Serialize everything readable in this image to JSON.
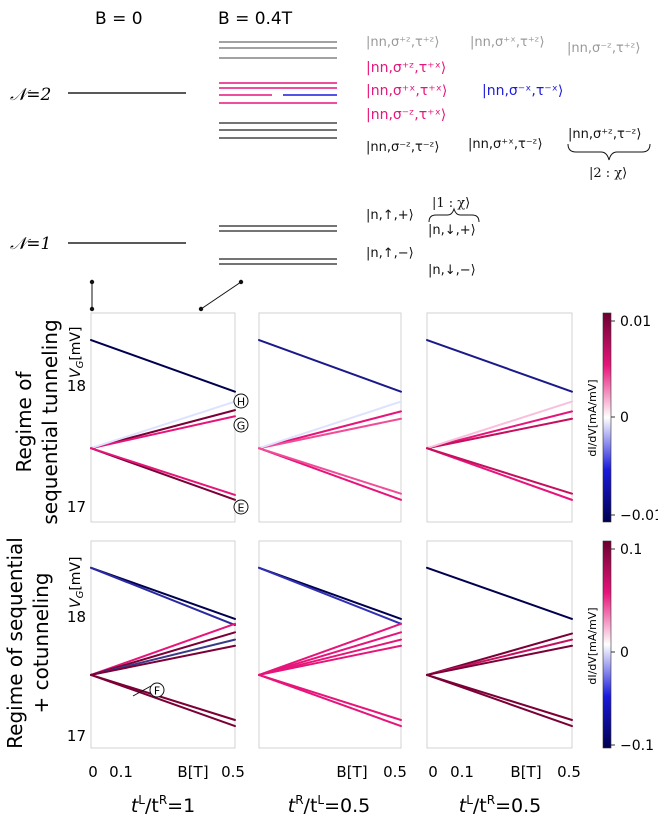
{
  "energy_diagram": {
    "b0_title": "B = 0",
    "b04_title": "B = 0.4T",
    "n2_label": "𝒩=2",
    "n1_label": "𝒩=1",
    "n2_states": [
      {
        "text": "|nn,σ⁺ᶻ,τ⁺ᶻ⟩",
        "color": "#999999"
      },
      {
        "text": "|nn,σ⁺ˣ,τ⁺ᶻ⟩",
        "color": "#999999"
      },
      {
        "text": "|nn,σ⁻ᶻ,τ⁺ᶻ⟩",
        "color": "#999999"
      },
      {
        "text": "|nn,σ⁺ᶻ,τ⁺ˣ⟩",
        "color": "#e6157a"
      },
      {
        "text": "|nn,σ⁺ˣ,τ⁺ˣ⟩",
        "color": "#e6157a"
      },
      {
        "text": "|nn,σ⁻ˣ,τ⁻ˣ⟩",
        "color": "#1a1adc"
      },
      {
        "text": "|nn,σ⁻ᶻ,τ⁺ˣ⟩",
        "color": "#e6157a"
      },
      {
        "text": "|nn,σ⁻ᶻ,τ⁻ᶻ⟩",
        "color": "#111111"
      },
      {
        "text": "|nn,σ⁺ˣ,τ⁻ᶻ⟩",
        "color": "#111111"
      },
      {
        "text": "|nn,σ⁺ᶻ,τ⁻ᶻ⟩",
        "color": "#111111"
      }
    ],
    "n2_brace_label": "|2 : χ⟩",
    "n1_states": [
      {
        "text": "|n,↑,+⟩"
      },
      {
        "text": "|n,↓,+⟩"
      },
      {
        "text": "|n,↑,−⟩"
      },
      {
        "text": "|n,↓,−⟩"
      }
    ],
    "n1_brace_label": "|1 : χ⟩"
  },
  "row_labels": {
    "top_line1": "Regime of",
    "top_line2": "sequential tunneling",
    "bottom_line1": "Regime of sequential",
    "bottom_line2": "+ cotunneling"
  },
  "axes": {
    "ylabel": "V_G[mV]",
    "yticks": [
      "18",
      "17"
    ],
    "xtick_0": "0",
    "xtick_01": "0.1",
    "xtick_05": "0.5",
    "xlabel_b": "B[T]"
  },
  "column_labels": [
    {
      "pre": "t",
      "sup1": "L",
      "mid": "/t",
      "sup2": "R",
      "post": "=1"
    },
    {
      "pre": "t",
      "sup1": "R",
      "mid": "/t",
      "sup2": "L",
      "post": "=0.5"
    },
    {
      "pre": "t",
      "sup1": "L",
      "mid": "/t",
      "sup2": "R",
      "post": "=0.5"
    }
  ],
  "markers": {
    "H": "H",
    "G": "G",
    "E": "E",
    "F": "F"
  },
  "colorbars": [
    {
      "label": "dI/dV[mA/mV]",
      "max": "0.01",
      "mid": "0",
      "min": "−0.01"
    },
    {
      "label": "dI/dV[mA/mV]",
      "max": "0.1",
      "mid": "0",
      "min": "−0.1"
    }
  ],
  "colors": {
    "pos_strong": "#6b0030",
    "pos": "#e6157a",
    "neg": "#1a1adc",
    "neg_strong": "#00004f",
    "neutral": "#ffffff"
  },
  "chart_data": {
    "type": "line",
    "x_range": [
      0,
      0.5
    ],
    "y_range": [
      16.85,
      18.55
    ],
    "panels": [
      {
        "row": "sequential",
        "column": "tL/tR=1",
        "series": [
          {
            "x": [
              0,
              0.5
            ],
            "y": [
              18.33,
              17.91
            ],
            "color": "#00004f"
          },
          {
            "x": [
              0,
              0.5
            ],
            "y": [
              17.45,
              17.76
            ],
            "color": "#7a0036"
          },
          {
            "x": [
              0,
              0.5
            ],
            "y": [
              17.45,
              17.71
            ],
            "color": "#e6157a"
          },
          {
            "x": [
              0,
              0.5
            ],
            "y": [
              17.45,
              17.83
            ],
            "color": "#dde3ff"
          },
          {
            "x": [
              0,
              0.5
            ],
            "y": [
              17.45,
              17.03
            ],
            "color": "#7a0036"
          },
          {
            "x": [
              0,
              0.5
            ],
            "y": [
              17.45,
              17.07
            ],
            "color": "#e6157a"
          }
        ]
      },
      {
        "row": "sequential",
        "column": "tR/tL=0.5",
        "series": [
          {
            "x": [
              0,
              0.5
            ],
            "y": [
              18.33,
              17.91
            ],
            "color": "#1a1a8a"
          },
          {
            "x": [
              0,
              0.5
            ],
            "y": [
              17.45,
              17.75
            ],
            "color": "#e6157a"
          },
          {
            "x": [
              0,
              0.5
            ],
            "y": [
              17.45,
              17.69
            ],
            "color": "#f04d99"
          },
          {
            "x": [
              0,
              0.5
            ],
            "y": [
              17.45,
              17.83
            ],
            "color": "#dde3ff"
          },
          {
            "x": [
              0,
              0.5
            ],
            "y": [
              17.45,
              17.03
            ],
            "color": "#e6157a"
          },
          {
            "x": [
              0,
              0.5
            ],
            "y": [
              17.45,
              17.08
            ],
            "color": "#f04d99"
          }
        ]
      },
      {
        "row": "sequential",
        "column": "tL/tR=0.5",
        "series": [
          {
            "x": [
              0,
              0.5
            ],
            "y": [
              18.33,
              17.91
            ],
            "color": "#1a1a8a"
          },
          {
            "x": [
              0,
              0.5
            ],
            "y": [
              17.45,
              17.75
            ],
            "color": "#e6157a"
          },
          {
            "x": [
              0,
              0.5
            ],
            "y": [
              17.45,
              17.69
            ],
            "color": "#c4105f"
          },
          {
            "x": [
              0,
              0.5
            ],
            "y": [
              17.45,
              17.83
            ],
            "color": "#f8c0dc"
          },
          {
            "x": [
              0,
              0.5
            ],
            "y": [
              17.45,
              17.03
            ],
            "color": "#e6157a"
          },
          {
            "x": [
              0,
              0.5
            ],
            "y": [
              17.45,
              17.08
            ],
            "color": "#c4105f"
          }
        ]
      },
      {
        "row": "cotunneling",
        "column": "tL/tR=1",
        "series": [
          {
            "x": [
              0,
              0.5
            ],
            "y": [
              18.33,
              17.91
            ],
            "color": "#00004f"
          },
          {
            "x": [
              0,
              0.5
            ],
            "y": [
              18.33,
              17.86
            ],
            "color": "#2a2aa0"
          },
          {
            "x": [
              0,
              0.5
            ],
            "y": [
              17.45,
              17.87
            ],
            "color": "#e6157a"
          },
          {
            "x": [
              0,
              0.5
            ],
            "y": [
              17.45,
              17.8
            ],
            "color": "#7a0036"
          },
          {
            "x": [
              0,
              0.5
            ],
            "y": [
              17.45,
              17.74
            ],
            "color": "#3a3a8a"
          },
          {
            "x": [
              0,
              0.5
            ],
            "y": [
              17.45,
              17.69
            ],
            "color": "#7a0036"
          },
          {
            "x": [
              0,
              0.5
            ],
            "y": [
              17.45,
              17.03
            ],
            "color": "#7a0036"
          },
          {
            "x": [
              0,
              0.5
            ],
            "y": [
              17.45,
              17.08
            ],
            "color": "#7a0036"
          }
        ]
      },
      {
        "row": "cotunneling",
        "column": "tR/tL=0.5",
        "series": [
          {
            "x": [
              0,
              0.5
            ],
            "y": [
              18.33,
              17.91
            ],
            "color": "#00004f"
          },
          {
            "x": [
              0,
              0.5
            ],
            "y": [
              18.33,
              17.87
            ],
            "color": "#3030b0"
          },
          {
            "x": [
              0,
              0.5
            ],
            "y": [
              17.45,
              17.87
            ],
            "color": "#e6157a"
          },
          {
            "x": [
              0,
              0.5
            ],
            "y": [
              17.45,
              17.8
            ],
            "color": "#e6157a"
          },
          {
            "x": [
              0,
              0.5
            ],
            "y": [
              17.45,
              17.74
            ],
            "color": "#e6157a"
          },
          {
            "x": [
              0,
              0.5
            ],
            "y": [
              17.45,
              17.69
            ],
            "color": "#e6157a"
          },
          {
            "x": [
              0,
              0.5
            ],
            "y": [
              17.45,
              17.03
            ],
            "color": "#e6157a"
          },
          {
            "x": [
              0,
              0.5
            ],
            "y": [
              17.45,
              17.08
            ],
            "color": "#e6157a"
          }
        ]
      },
      {
        "row": "cotunneling",
        "column": "tL/tR=0.5",
        "series": [
          {
            "x": [
              0,
              0.5
            ],
            "y": [
              18.33,
              17.91
            ],
            "color": "#00004f"
          },
          {
            "x": [
              0,
              0.5
            ],
            "y": [
              17.45,
              17.79
            ],
            "color": "#7a0036"
          },
          {
            "x": [
              0,
              0.5
            ],
            "y": [
              17.45,
              17.74
            ],
            "color": "#c4105f"
          },
          {
            "x": [
              0,
              0.5
            ],
            "y": [
              17.45,
              17.69
            ],
            "color": "#7a0036"
          },
          {
            "x": [
              0,
              0.5
            ],
            "y": [
              17.45,
              17.03
            ],
            "color": "#7a0036"
          },
          {
            "x": [
              0,
              0.5
            ],
            "y": [
              17.45,
              17.08
            ],
            "color": "#7a0036"
          }
        ]
      }
    ]
  }
}
